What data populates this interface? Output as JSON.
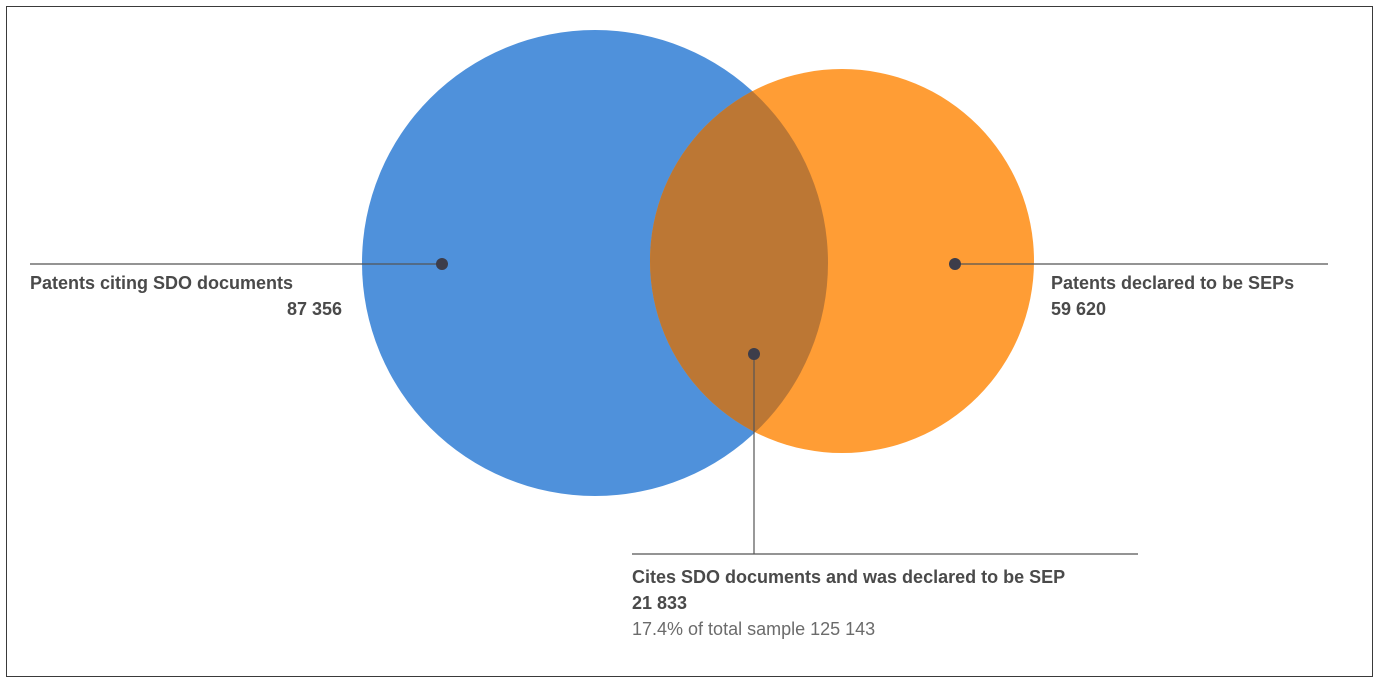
{
  "diagram": {
    "type": "venn",
    "colors": {
      "set_a": "#4f91db",
      "set_b": "#ff9d35",
      "overlap": "#bc7734",
      "leader": "#555555",
      "dot": "#3d3d4a"
    },
    "set_a": {
      "label": "Patents citing SDO documents",
      "value": "87 356"
    },
    "set_b": {
      "label": "Patents declared to be SEPs",
      "value": "59 620"
    },
    "intersection": {
      "label": "Cites SDO documents and was declared to be SEP",
      "value": "21 833",
      "note": "17.4% of total sample 125 143"
    }
  }
}
